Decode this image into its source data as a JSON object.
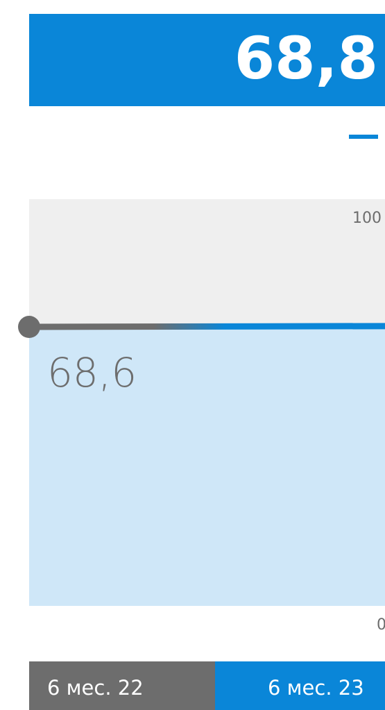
{
  "chart_data": {
    "type": "line",
    "categories": [
      "6 мес. 22",
      "6 мес. 23"
    ],
    "values": [
      68.6,
      68.8
    ],
    "value_labels": [
      "68,6",
      "68,8"
    ],
    "colors": [
      "#6d6d6d",
      "#0a86d8"
    ],
    "ylim": [
      0,
      100
    ],
    "yticks": [
      0,
      100
    ]
  }
}
